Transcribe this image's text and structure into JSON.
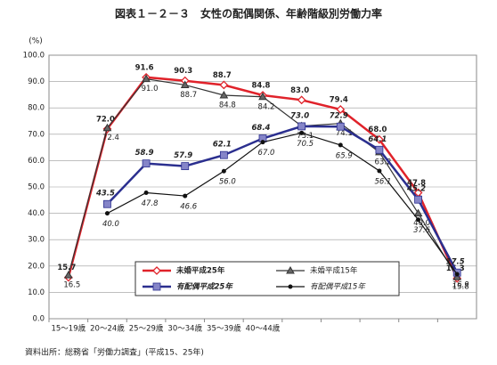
{
  "chart_data": {
    "type": "line",
    "title": "図表１－２－３　女性の配偶関係、年齢階級別労働力率",
    "y_label": "(%)",
    "source": "資料出所：総務省「労働力調査」(平成15、25年)",
    "categories": [
      "15～19歳",
      "20～24歳",
      "25～29歳",
      "30～34歳",
      "35～39歳",
      "40～44歳",
      null,
      null,
      null,
      null,
      null
    ],
    "ylim": [
      0,
      100
    ],
    "yticks": [
      {
        "value": 0,
        "label": "0.0"
      },
      {
        "value": 10,
        "label": "10.0"
      },
      {
        "value": 20,
        "label": "20.0"
      },
      {
        "value": 30,
        "label": "30.0"
      },
      {
        "value": 40,
        "label": "40.0"
      },
      {
        "value": 50,
        "label": "50.0"
      },
      {
        "value": 60,
        "label": "60.0"
      },
      {
        "value": 70,
        "label": "70.0"
      },
      {
        "value": 80,
        "label": "80.0"
      },
      {
        "value": 90,
        "label": "90.0"
      },
      {
        "value": 100,
        "label": "100.0"
      }
    ],
    "grid": true,
    "series": [
      {
        "name": "未婚平成25年",
        "color": "#e0222a",
        "marker": "diamond",
        "values": [
          15.7,
          72.0,
          91.6,
          90.3,
          88.7,
          84.8,
          83.0,
          79.4,
          68.0,
          47.8,
          15.3
        ],
        "value_labels": [
          "15.7",
          "72.0",
          "91.6",
          "90.3",
          "88.7",
          "84.8",
          "83.0",
          "79.4",
          "68.0",
          "47.8",
          "15.3"
        ]
      },
      {
        "name": "未婚平成15年",
        "color": "#333333",
        "marker": "triangle",
        "values": [
          16.5,
          72.4,
          91.0,
          88.7,
          84.8,
          84.2,
          73.1,
          74.1,
          63.2,
          40.0,
          15.8
        ],
        "value_labels": [
          "16.5",
          "72.4",
          "91.0",
          "88.7",
          "84.8",
          "84.2",
          "73.1",
          "74.1",
          "63.2",
          "40.0",
          "15.8"
        ]
      },
      {
        "name": "有配偶平成25年",
        "color": "#2b2f8f",
        "marker": "square",
        "values": [
          null,
          43.5,
          58.9,
          57.9,
          62.1,
          68.4,
          73.0,
          72.9,
          64.1,
          45.2,
          17.5
        ],
        "value_labels": [
          null,
          "43.5",
          "58.9",
          "57.9",
          "62.1",
          "68.4",
          "73.0",
          "72.9",
          "64.1",
          "45.2",
          "17.5"
        ]
      },
      {
        "name": "有配偶平成15年",
        "color": "#111111",
        "marker": "dot",
        "values": [
          null,
          40.0,
          47.8,
          46.6,
          56.0,
          67.0,
          70.5,
          65.9,
          56.1,
          37.6,
          16.9
        ],
        "value_labels": [
          null,
          "40.0",
          "47.8",
          "46.6",
          "56.0",
          "67.0",
          "70.5",
          "65.9",
          "56.1",
          "37.6",
          "16.9"
        ]
      }
    ]
  }
}
